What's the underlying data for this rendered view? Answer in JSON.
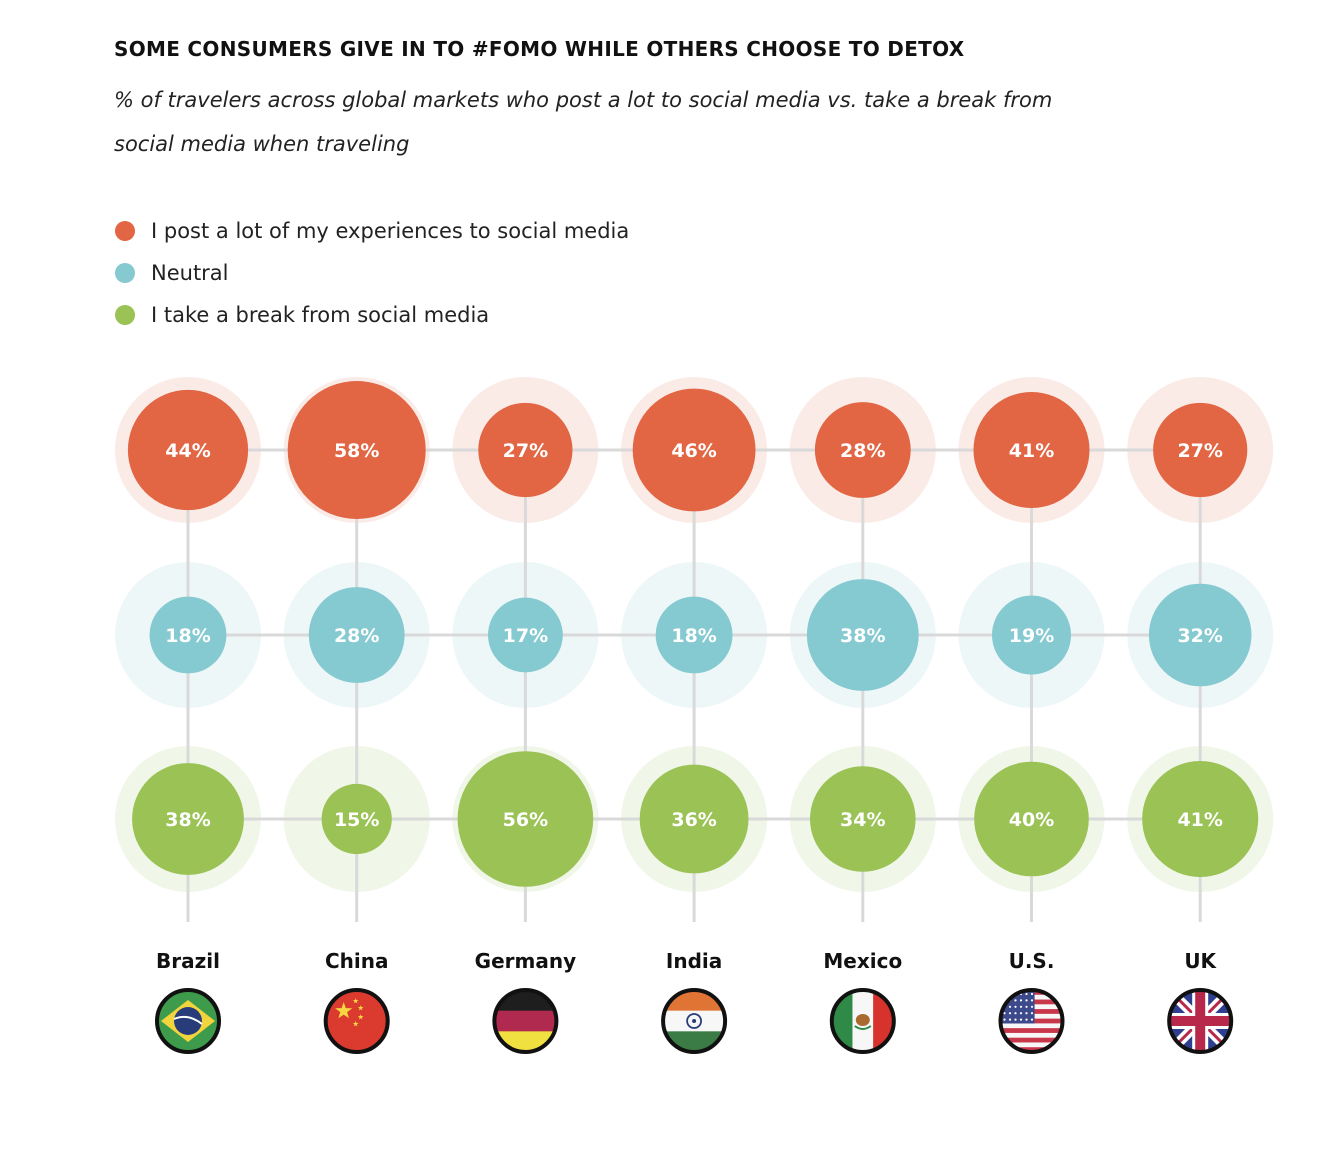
{
  "chart_data": {
    "type": "bubble-matrix",
    "title": "SOME CONSUMERS GIVE IN TO #FOMO WHILE OTHERS CHOOSE TO DETOX",
    "subtitle": "% of travelers across global markets who post a lot to social media vs. take a break from social media when traveling",
    "categories": [
      "Brazil",
      "China",
      "Germany",
      "India",
      "Mexico",
      "U.S.",
      "UK"
    ],
    "series": [
      {
        "name": "I post a lot of my experiences to social media",
        "key": "post",
        "color": "#E26544",
        "halo_color": "#FAEBE7",
        "values": [
          44,
          58,
          27,
          46,
          28,
          41,
          27
        ]
      },
      {
        "name": "Neutral",
        "key": "neutral",
        "color": "#85C9D1",
        "halo_color": "#EEF7F8",
        "values": [
          18,
          28,
          17,
          18,
          38,
          19,
          32
        ]
      },
      {
        "name": "I take a break from social media",
        "key": "break",
        "color": "#9AC255",
        "halo_color": "#F0F6E8",
        "values": [
          38,
          15,
          56,
          36,
          34,
          40,
          41
        ]
      }
    ],
    "value_format": "{v}%",
    "max_value": 58,
    "legend_position": "top-left",
    "grid": true,
    "grid_color": "#D9D9D9",
    "flags": [
      "brazil-flag",
      "china-flag",
      "germany-flag",
      "india-flag",
      "mexico-flag",
      "us-flag",
      "uk-flag"
    ]
  }
}
